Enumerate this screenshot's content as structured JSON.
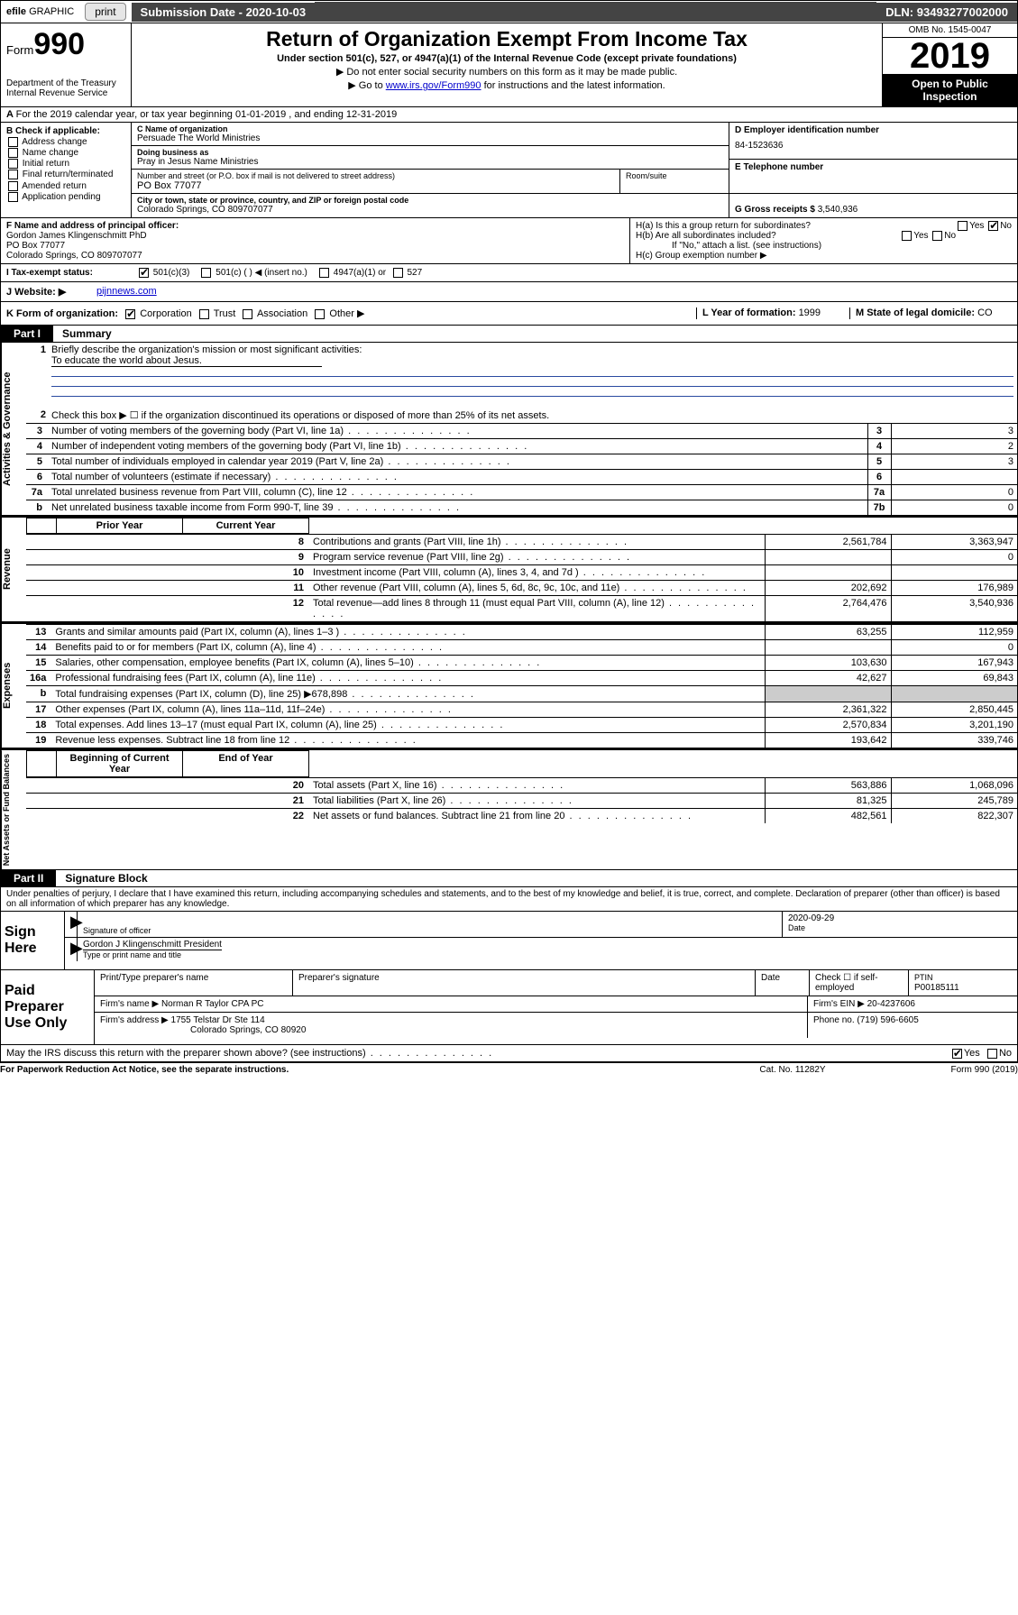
{
  "topbar": {
    "efile_prefix": "efile",
    "efile_graphic": "GRAPHIC",
    "print": "print",
    "subdate_label": "Submission Date - ",
    "subdate": "2020-10-03",
    "dln_label": "DLN: ",
    "dln": "93493277002000"
  },
  "header": {
    "form_small": "Form",
    "form_num": "990",
    "dept": "Department of the Treasury\nInternal Revenue Service",
    "title": "Return of Organization Exempt From Income Tax",
    "sub1": "Under section 501(c), 527, or 4947(a)(1) of the Internal Revenue Code (except private foundations)",
    "sub2": "▶ Do not enter social security numbers on this form as it may be made public.",
    "sub3a": "▶ Go to ",
    "sub3_link": "www.irs.gov/Form990",
    "sub3b": " for instructions and the latest information.",
    "omb": "OMB No. 1545-0047",
    "year": "2019",
    "otp": "Open to Public Inspection"
  },
  "row_a": {
    "prefix": "A",
    "text": "For the 2019 calendar year, or tax year beginning 01-01-2019   , and ending 12-31-2019"
  },
  "col_b": {
    "label": "B Check if applicable:",
    "items": [
      "Address change",
      "Name change",
      "Initial return",
      "Final return/terminated",
      "Amended return",
      "Application pending"
    ]
  },
  "col_c": {
    "name_lbl": "C Name of organization",
    "name": "Persuade The World Ministries",
    "dba_lbl": "Doing business as",
    "dba": "Pray in Jesus Name Ministries",
    "addr_lbl": "Number and street (or P.O. box if mail is not delivered to street address)",
    "room_lbl": "Room/suite",
    "addr": "PO Box 77077",
    "city_lbl": "City or town, state or province, country, and ZIP or foreign postal code",
    "city": "Colorado Springs, CO  809707077"
  },
  "col_d": {
    "d_lbl": "D Employer identification number",
    "ein": "84-1523636",
    "e_lbl": "E Telephone number",
    "phone": "",
    "g_lbl": "G Gross receipts $ ",
    "g_val": "3,540,936"
  },
  "col_f": {
    "lbl": "F Name and address of principal officer:",
    "name": "Gordon James Klingenschmitt PhD",
    "addr1": "PO Box 77077",
    "addr2": "Colorado Springs, CO  809707077"
  },
  "col_h": {
    "ha": "H(a)  Is this a group return for subordinates?",
    "hb": "H(b)  Are all subordinates included?",
    "hb_note": "If \"No,\" attach a list. (see instructions)",
    "hc": "H(c)  Group exemption number ▶",
    "yes": "Yes",
    "no": "No"
  },
  "row_i": {
    "lbl": "I   Tax-exempt status:",
    "o1": "501(c)(3)",
    "o2": "501(c) (   ) ◀ (insert no.)",
    "o3": "4947(a)(1) or",
    "o4": "527"
  },
  "row_j": {
    "lbl": "J   Website: ▶",
    "val": "pijnnews.com"
  },
  "row_k": {
    "lbl": "K Form of organization:",
    "o1": "Corporation",
    "o2": "Trust",
    "o3": "Association",
    "o4": "Other ▶",
    "l_lbl": "L Year of formation: ",
    "l_val": "1999",
    "m_lbl": "M State of legal domicile: ",
    "m_val": "CO"
  },
  "part1": {
    "tab": "Part I",
    "title": "Summary"
  },
  "summary": {
    "side1": "Activities & Governance",
    "l1_lbl": "Briefly describe the organization's mission or most significant activities:",
    "l1_val": "To educate the world about Jesus.",
    "l2": "Check this box ▶ ☐  if the organization discontinued its operations or disposed of more than 25% of its net assets.",
    "lines_gov": [
      {
        "n": "3",
        "t": "Number of voting members of the governing body (Part VI, line 1a)",
        "bn": "3",
        "v": "3"
      },
      {
        "n": "4",
        "t": "Number of independent voting members of the governing body (Part VI, line 1b)",
        "bn": "4",
        "v": "2"
      },
      {
        "n": "5",
        "t": "Total number of individuals employed in calendar year 2019 (Part V, line 2a)",
        "bn": "5",
        "v": "3"
      },
      {
        "n": "6",
        "t": "Total number of volunteers (estimate if necessary)",
        "bn": "6",
        "v": ""
      },
      {
        "n": "7a",
        "t": "Total unrelated business revenue from Part VIII, column (C), line 12",
        "bn": "7a",
        "v": "0"
      },
      {
        "n": "b",
        "t": "Net unrelated business taxable income from Form 990-T, line 39",
        "bn": "7b",
        "v": "0"
      }
    ],
    "hdr_prior": "Prior Year",
    "hdr_curr": "Current Year",
    "side2": "Revenue",
    "rev": [
      {
        "n": "8",
        "t": "Contributions and grants (Part VIII, line 1h)",
        "p": "2,561,784",
        "c": "3,363,947"
      },
      {
        "n": "9",
        "t": "Program service revenue (Part VIII, line 2g)",
        "p": "",
        "c": "0"
      },
      {
        "n": "10",
        "t": "Investment income (Part VIII, column (A), lines 3, 4, and 7d )",
        "p": "",
        "c": ""
      },
      {
        "n": "11",
        "t": "Other revenue (Part VIII, column (A), lines 5, 6d, 8c, 9c, 10c, and 11e)",
        "p": "202,692",
        "c": "176,989"
      },
      {
        "n": "12",
        "t": "Total revenue—add lines 8 through 11 (must equal Part VIII, column (A), line 12)",
        "p": "2,764,476",
        "c": "3,540,936"
      }
    ],
    "side3": "Expenses",
    "exp": [
      {
        "n": "13",
        "t": "Grants and similar amounts paid (Part IX, column (A), lines 1–3 )",
        "p": "63,255",
        "c": "112,959"
      },
      {
        "n": "14",
        "t": "Benefits paid to or for members (Part IX, column (A), line 4)",
        "p": "",
        "c": "0"
      },
      {
        "n": "15",
        "t": "Salaries, other compensation, employee benefits (Part IX, column (A), lines 5–10)",
        "p": "103,630",
        "c": "167,943"
      },
      {
        "n": "16a",
        "t": "Professional fundraising fees (Part IX, column (A), line 11e)",
        "p": "42,627",
        "c": "69,843"
      },
      {
        "n": "b",
        "t": "Total fundraising expenses (Part IX, column (D), line 25) ▶678,898",
        "p": "shade",
        "c": "shade"
      },
      {
        "n": "17",
        "t": "Other expenses (Part IX, column (A), lines 11a–11d, 11f–24e)",
        "p": "2,361,322",
        "c": "2,850,445"
      },
      {
        "n": "18",
        "t": "Total expenses. Add lines 13–17 (must equal Part IX, column (A), line 25)",
        "p": "2,570,834",
        "c": "3,201,190"
      },
      {
        "n": "19",
        "t": "Revenue less expenses. Subtract line 18 from line 12",
        "p": "193,642",
        "c": "339,746"
      }
    ],
    "hdr_beg": "Beginning of Current Year",
    "hdr_end": "End of Year",
    "side4": "Net Assets or Fund Balances",
    "net": [
      {
        "n": "20",
        "t": "Total assets (Part X, line 16)",
        "p": "563,886",
        "c": "1,068,096"
      },
      {
        "n": "21",
        "t": "Total liabilities (Part X, line 26)",
        "p": "81,325",
        "c": "245,789"
      },
      {
        "n": "22",
        "t": "Net assets or fund balances. Subtract line 21 from line 20",
        "p": "482,561",
        "c": "822,307"
      }
    ]
  },
  "part2": {
    "tab": "Part II",
    "title": "Signature Block"
  },
  "sig": {
    "perjury": "Under penalties of perjury, I declare that I have examined this return, including accompanying schedules and statements, and to the best of my knowledge and belief, it is true, correct, and complete. Declaration of preparer (other than officer) is based on all information of which preparer has any knowledge.",
    "sign_here": "Sign Here",
    "sig_officer": "Signature of officer",
    "date": "2020-09-29",
    "date_lbl": "Date",
    "name": "Gordon J Klingenschmitt  President",
    "name_lbl": "Type or print name and title"
  },
  "prep": {
    "lab": "Paid Preparer Use Only",
    "r1": {
      "c1": "Print/Type preparer's name",
      "c2": "Preparer's signature",
      "c3": "Date",
      "c4": "Check ☐ if self-employed",
      "c5_lbl": "PTIN",
      "c5": "P00185111"
    },
    "r2": {
      "c1": "Firm's name    ▶ Norman R Taylor CPA PC",
      "c2_lbl": "Firm's EIN ▶ ",
      "c2": "20-4237606"
    },
    "r3": {
      "c1": "Firm's address ▶ 1755 Telstar Dr Ste 114",
      "c2_lbl": "Phone no. ",
      "c2": "(719) 596-6605"
    },
    "r3b": "Colorado Springs, CO  80920"
  },
  "discuss": {
    "txt": "May the IRS discuss this return with the preparer shown above? (see instructions)",
    "yes": "Yes",
    "no": "No"
  },
  "footer": {
    "l": "For Paperwork Reduction Act Notice, see the separate instructions.",
    "m": "Cat. No. 11282Y",
    "r": "Form 990 (2019)"
  }
}
